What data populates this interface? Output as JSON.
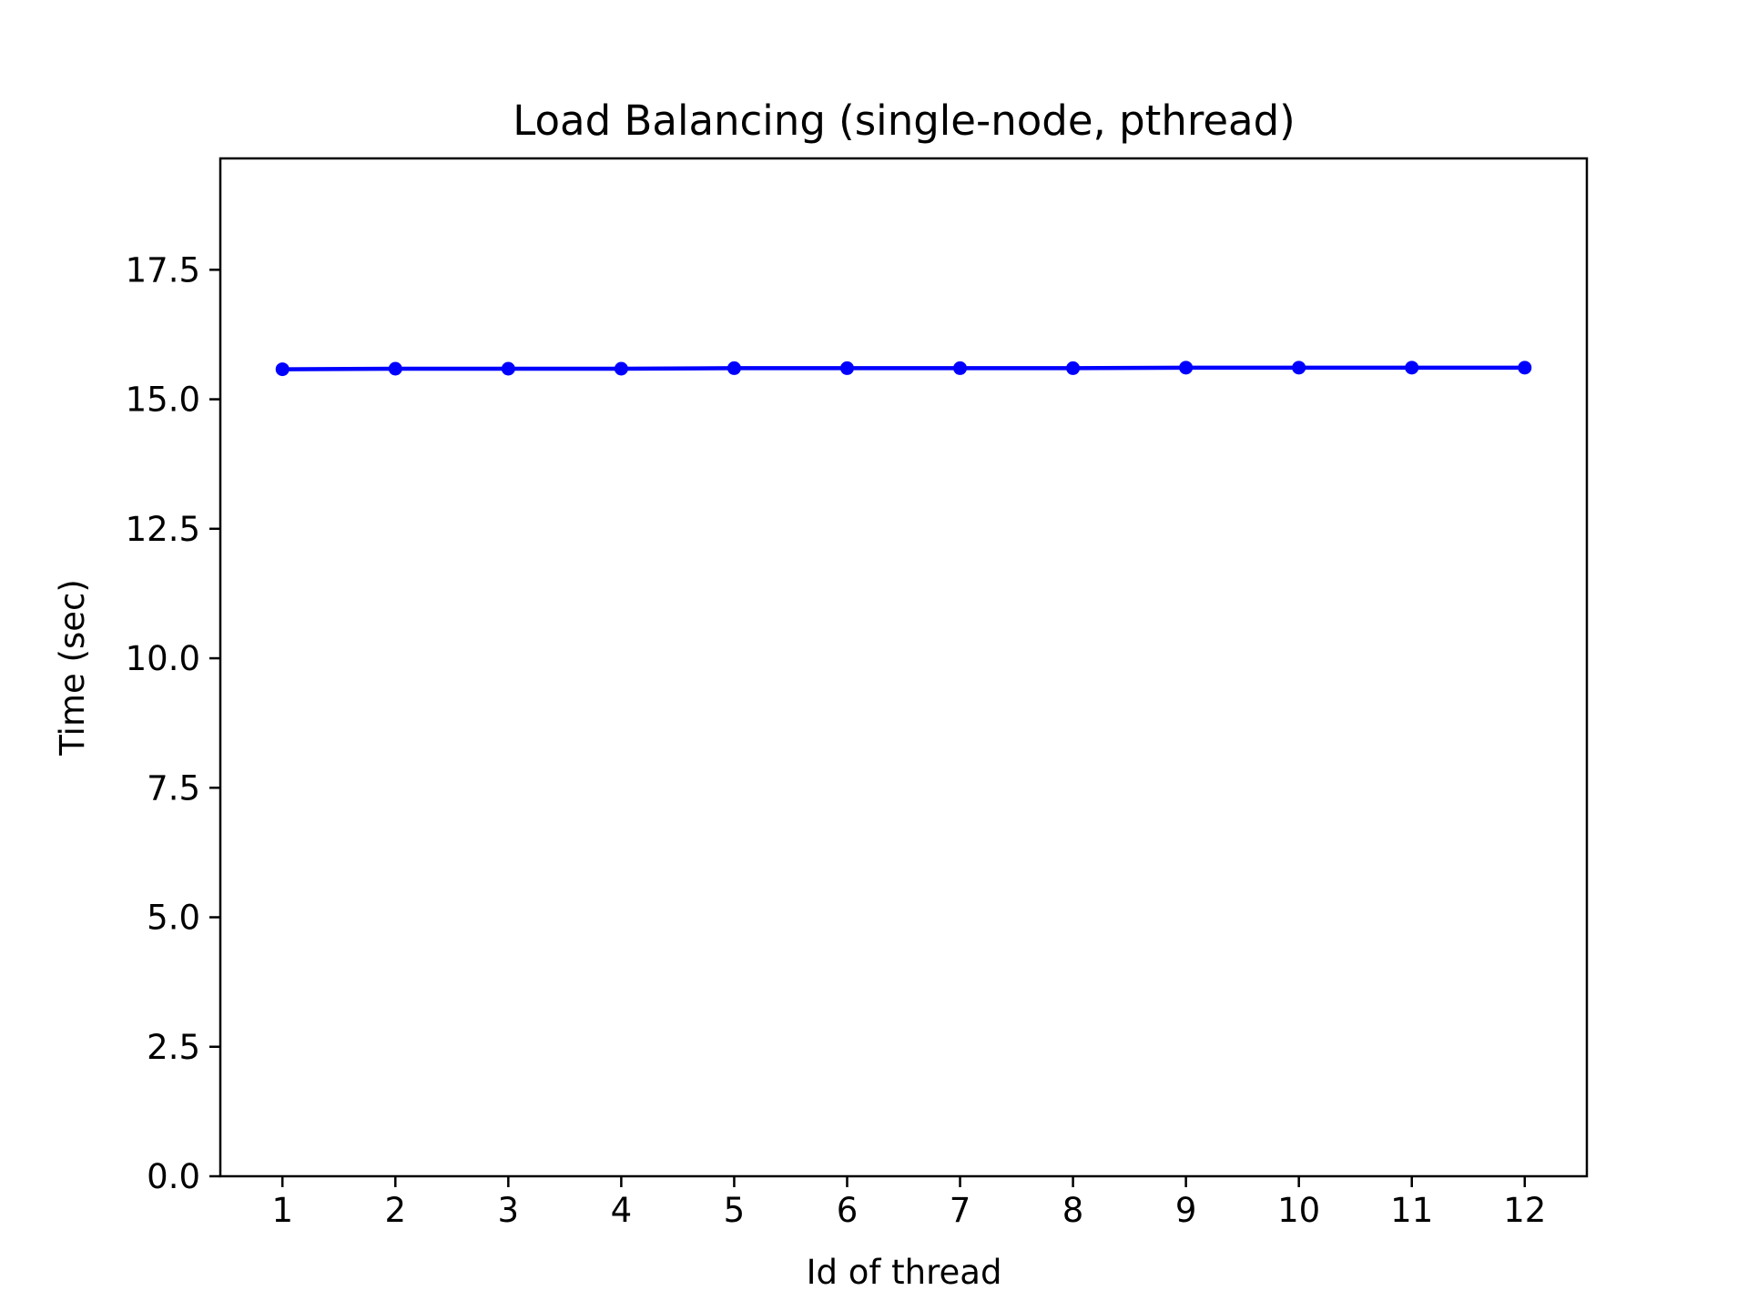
{
  "chart_data": {
    "type": "line",
    "title": "Load Balancing (single-node, pthread)",
    "xlabel": "Id of thread",
    "ylabel": "Time (sec)",
    "x": [
      1,
      2,
      3,
      4,
      5,
      6,
      7,
      8,
      9,
      10,
      11,
      12
    ],
    "x_tick_labels": [
      "1",
      "2",
      "3",
      "4",
      "5",
      "6",
      "7",
      "8",
      "9",
      "10",
      "11",
      "12"
    ],
    "series": [
      {
        "color": "#0000ff",
        "marker": "dot",
        "values": [
          15.58,
          15.59,
          15.59,
          15.59,
          15.6,
          15.6,
          15.6,
          15.6,
          15.61,
          15.61,
          15.61,
          15.61
        ]
      }
    ],
    "xlim": [
      0.45,
      12.55
    ],
    "ylim": [
      0,
      19.65
    ],
    "y_ticks": [
      0,
      2.5,
      5,
      7.5,
      10,
      12.5,
      15,
      17.5
    ],
    "y_tick_labels": [
      "0.0",
      "2.5",
      "5.0",
      "7.5",
      "10.0",
      "12.5",
      "15.0",
      "17.5"
    ],
    "grid": false,
    "legend": "none"
  }
}
